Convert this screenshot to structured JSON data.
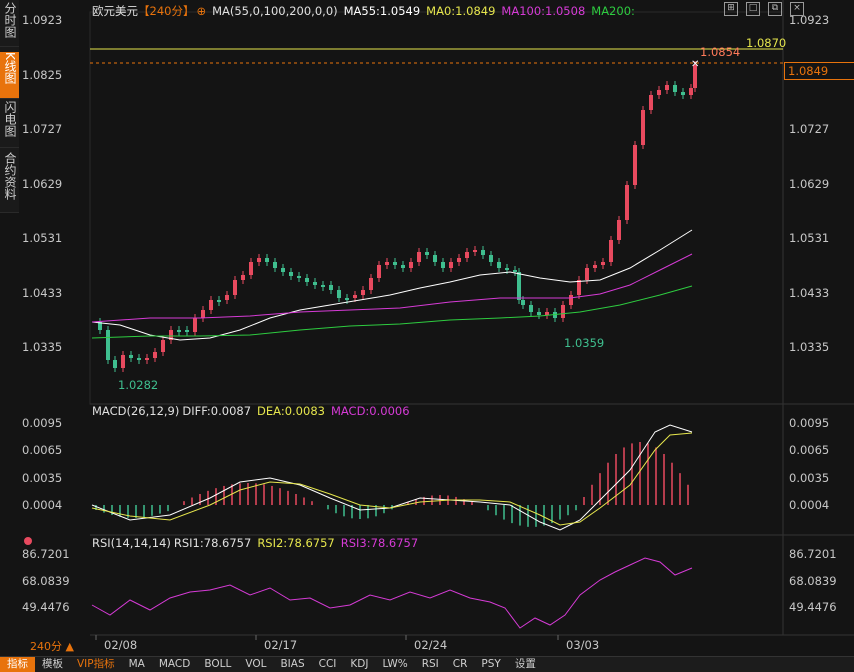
{
  "sidebar": {
    "tabs": [
      {
        "label": "分时图",
        "active": false
      },
      {
        "label": "K线图",
        "active": true
      },
      {
        "label": "闪电图",
        "active": false
      },
      {
        "label": "合约资料",
        "active": false
      }
    ]
  },
  "header": {
    "symbol": "欧元美元",
    "period_tag": "【240分】",
    "ma_params": "MA(55,0,100,200,0,0)",
    "ma55": "MA55:1.0549",
    "ma0": "MA0:1.0849",
    "ma100": "MA100:1.0508",
    "ma200": "MA200:",
    "icons": [
      "add-icon",
      "maximize-icon",
      "restore-icon",
      "close-icon"
    ]
  },
  "price_panel": {
    "yticks": [
      "1.0923",
      "1.0825",
      "1.0727",
      "1.0629",
      "1.0531",
      "1.0433",
      "1.0335"
    ],
    "last_price": "1.0849",
    "hline_label": "1.0870",
    "high_label": "1.0854",
    "low1_label": "1.0282",
    "low2_label": "1.0359"
  },
  "macd_panel": {
    "title": "MACD(26,12,9)",
    "diff": "DIFF:0.0087",
    "dea": "DEA:0.0083",
    "macd": "MACD:0.0006",
    "yticks": [
      "0.0095",
      "0.0065",
      "0.0035",
      "0.0004"
    ]
  },
  "rsi_panel": {
    "title": "RSI(14,14,14)",
    "rsi1": "RSI1:78.6757",
    "rsi2": "RSI2:78.6757",
    "rsi3": "RSI3:78.6757",
    "yticks": [
      "86.7201",
      "68.0839",
      "49.4476"
    ]
  },
  "xaxis": {
    "labels": [
      "02/08",
      "02/17",
      "02/24",
      "03/03"
    ]
  },
  "period": "240分",
  "bottom_tabs": [
    {
      "label": "指标",
      "active": true
    },
    {
      "label": "模板",
      "active": false
    },
    {
      "label": "VIP指标",
      "vip": true
    },
    {
      "label": "MA"
    },
    {
      "label": "MACD"
    },
    {
      "label": "BOLL"
    },
    {
      "label": "VOL"
    },
    {
      "label": "BIAS"
    },
    {
      "label": "CCI"
    },
    {
      "label": "KDJ"
    },
    {
      "label": "LW%"
    },
    {
      "label": "RSI"
    },
    {
      "label": "CR"
    },
    {
      "label": "PSY"
    },
    {
      "label": "设置"
    }
  ],
  "colors": {
    "up": "#e84a5f",
    "down": "#3fbf8f",
    "accent": "#e8730c",
    "ma55": "#ffffff",
    "ma100": "#d63bd6",
    "ma200": "#2ecc40",
    "yellow": "#e6e64d"
  }
}
